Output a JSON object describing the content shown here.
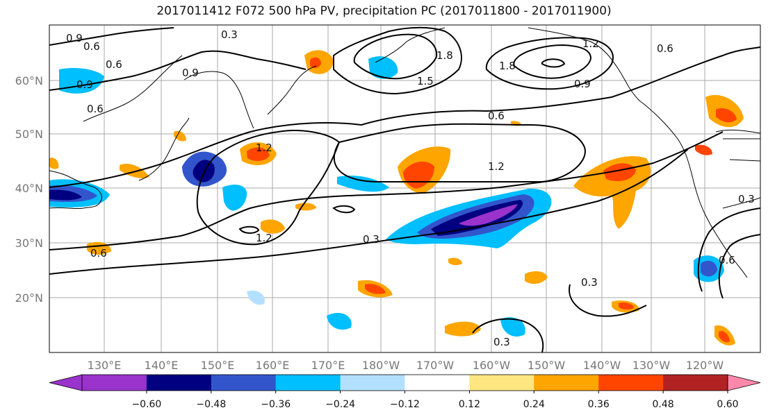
{
  "title": "2017011412 F072 500 hPa PV, precipitation PC (2017011800 - 2017011900)",
  "map": {
    "lon_labels": [
      "130°E",
      "140°E",
      "150°E",
      "160°E",
      "170°E",
      "180°W",
      "170°W",
      "160°W",
      "150°W",
      "140°W",
      "130°W",
      "120°W"
    ],
    "lat_labels": [
      "60°N",
      "50°N",
      "40°N",
      "30°N",
      "20°N"
    ],
    "contour_labels": [
      "0.9",
      "0.6",
      "0.3",
      "0.9",
      "0.6",
      "0.9",
      "0.6",
      "1.2",
      "1.2",
      "1.2",
      "0.3",
      "1.5",
      "1.8",
      "1.8",
      "1.2",
      "0.6",
      "0.9",
      "0.6",
      "0.3",
      "0.3",
      "0.6",
      "0.3",
      "0.6"
    ]
  },
  "colorbar": {
    "tick_labels": [
      "−0.60",
      "−0.48",
      "−0.36",
      "−0.24",
      "−0.12",
      "0.12",
      "0.24",
      "0.36",
      "0.48",
      "0.60"
    ],
    "colors": [
      "#9933cc",
      "#000080",
      "#3355cc",
      "#00bfff",
      "#b3e0ff",
      "#ffffff",
      "#ffe680",
      "#ffa500",
      "#ff4500",
      "#b22222",
      "#ff88aa"
    ]
  },
  "colors": {
    "contour": "#000000",
    "coast": "#000000",
    "grid": "#a8a8a8"
  }
}
